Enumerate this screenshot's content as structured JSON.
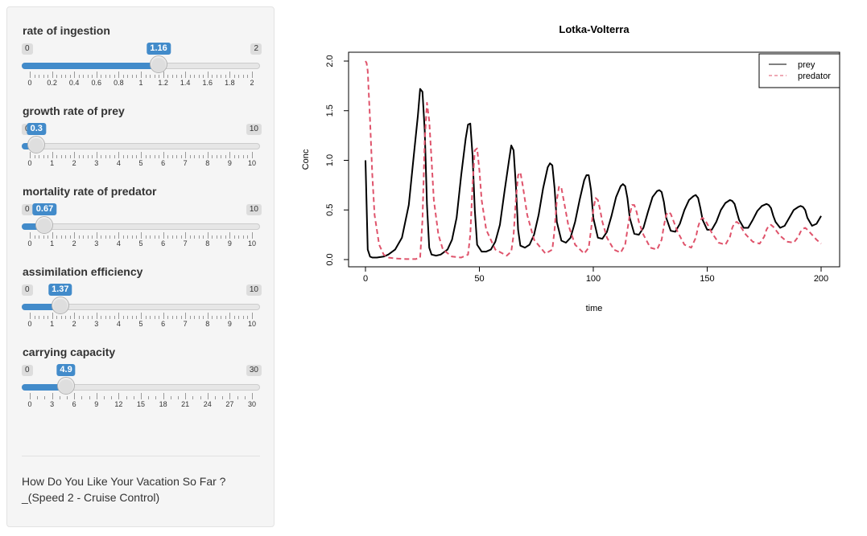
{
  "sliders": [
    {
      "id": "ingestion",
      "label": "rate of ingestion",
      "min": 0,
      "max": 2,
      "value": 1.16,
      "value_label": "1.16",
      "min_label": "0",
      "max_label": "2",
      "ticks": [
        "0",
        "0.2",
        "0.4",
        "0.6",
        "0.8",
        "1",
        "1.2",
        "1.4",
        "1.6",
        "1.8",
        "2"
      ],
      "minor_per_major": 4
    },
    {
      "id": "growth",
      "label": "growth rate of prey",
      "min": 0,
      "max": 10,
      "value": 0.3,
      "value_label": "0.3",
      "min_label": "0",
      "max_label": "10",
      "ticks": [
        "0",
        "1",
        "2",
        "3",
        "4",
        "5",
        "6",
        "7",
        "8",
        "9",
        "10"
      ],
      "minor_per_major": 4
    },
    {
      "id": "mortality",
      "label": "mortality rate of predator",
      "min": 0,
      "max": 10,
      "value": 0.67,
      "value_label": "0.67",
      "min_label": "0",
      "max_label": "10",
      "ticks": [
        "0",
        "1",
        "2",
        "3",
        "4",
        "5",
        "6",
        "7",
        "8",
        "9",
        "10"
      ],
      "minor_per_major": 4
    },
    {
      "id": "assimilation",
      "label": "assimilation efficiency",
      "min": 0,
      "max": 10,
      "value": 1.37,
      "value_label": "1.37",
      "min_label": "0",
      "max_label": "10",
      "ticks": [
        "0",
        "1",
        "2",
        "3",
        "4",
        "5",
        "6",
        "7",
        "8",
        "9",
        "10"
      ],
      "minor_per_major": 4
    },
    {
      "id": "capacity",
      "label": "carrying capacity",
      "min": 0,
      "max": 30,
      "value": 4.9,
      "value_label": "4.9",
      "min_label": "0",
      "max_label": "30",
      "ticks": [
        "0",
        "3",
        "6",
        "9",
        "12",
        "15",
        "18",
        "21",
        "24",
        "27",
        "30"
      ],
      "minor_per_major": 2
    }
  ],
  "footer": {
    "line1": "How Do You Like Your Vacation So Far ?",
    "line2": "_(Speed 2 - Cruise Control)"
  },
  "colors": {
    "accent": "#428bca",
    "prey": "#000000",
    "predator": "#DF536B"
  },
  "chart_data": {
    "type": "line",
    "title": "Lotka-Volterra",
    "xlabel": "time",
    "ylabel": "Conc",
    "xlim": [
      0,
      200
    ],
    "ylim": [
      0,
      2.0
    ],
    "xticks": [
      0,
      50,
      100,
      150,
      200
    ],
    "yticks": [
      0.0,
      0.5,
      1.0,
      1.5,
      2.0
    ],
    "ytick_labels": [
      "0.0",
      "0.5",
      "1.0",
      "1.5",
      "2.0"
    ],
    "legend_position": "top-right",
    "series": [
      {
        "name": "prey",
        "style": "solid",
        "color": "#000000",
        "x": [
          0,
          1,
          2,
          3,
          5,
          8,
          10,
          13,
          16,
          19,
          21,
          23,
          24,
          25,
          26,
          27,
          28,
          29,
          31,
          33,
          36,
          38,
          40,
          42,
          44,
          45,
          46,
          47,
          48,
          49,
          51,
          53,
          55,
          57,
          59,
          61,
          63,
          64,
          65,
          66,
          67,
          68,
          70,
          72,
          74,
          76,
          78,
          80,
          81,
          82,
          83,
          84,
          86,
          88,
          90,
          92,
          94,
          96,
          97,
          98,
          99,
          100,
          102,
          104,
          106,
          108,
          110,
          112,
          113,
          114,
          115,
          116,
          118,
          120,
          122,
          124,
          126,
          128,
          129,
          130,
          131,
          132,
          134,
          136,
          138,
          140,
          142,
          144,
          145,
          146,
          147,
          148,
          150,
          152,
          154,
          156,
          158,
          160,
          161,
          162,
          163,
          164,
          166,
          168,
          170,
          172,
          174,
          176,
          177,
          178,
          179,
          180,
          182,
          184,
          186,
          188,
          190,
          191,
          192,
          193,
          194,
          196,
          198,
          200
        ],
        "y": [
          1.0,
          0.1,
          0.03,
          0.02,
          0.02,
          0.03,
          0.05,
          0.1,
          0.22,
          0.55,
          1.0,
          1.45,
          1.72,
          1.69,
          1.3,
          0.55,
          0.12,
          0.05,
          0.04,
          0.05,
          0.1,
          0.2,
          0.42,
          0.85,
          1.22,
          1.36,
          1.37,
          1.05,
          0.5,
          0.15,
          0.08,
          0.08,
          0.1,
          0.18,
          0.35,
          0.68,
          1.0,
          1.15,
          1.1,
          0.75,
          0.3,
          0.14,
          0.12,
          0.15,
          0.25,
          0.45,
          0.72,
          0.93,
          0.97,
          0.95,
          0.72,
          0.38,
          0.19,
          0.17,
          0.22,
          0.38,
          0.6,
          0.8,
          0.85,
          0.85,
          0.7,
          0.42,
          0.22,
          0.21,
          0.28,
          0.44,
          0.63,
          0.74,
          0.76,
          0.74,
          0.62,
          0.42,
          0.26,
          0.25,
          0.32,
          0.48,
          0.63,
          0.69,
          0.7,
          0.68,
          0.58,
          0.42,
          0.29,
          0.28,
          0.36,
          0.5,
          0.6,
          0.64,
          0.65,
          0.62,
          0.52,
          0.4,
          0.3,
          0.3,
          0.38,
          0.5,
          0.57,
          0.6,
          0.59,
          0.56,
          0.48,
          0.4,
          0.32,
          0.32,
          0.4,
          0.49,
          0.54,
          0.56,
          0.55,
          0.52,
          0.44,
          0.38,
          0.32,
          0.34,
          0.42,
          0.5,
          0.53,
          0.54,
          0.53,
          0.5,
          0.42,
          0.34,
          0.36,
          0.44
        ]
      },
      {
        "name": "predator",
        "style": "dashed",
        "color": "#DF536B",
        "x": [
          0,
          0.5,
          1,
          2,
          3,
          4,
          6,
          8,
          10,
          14,
          18,
          22,
          24,
          25,
          26,
          27,
          28,
          29,
          30,
          32,
          34,
          38,
          42,
          45,
          46,
          47,
          48,
          49,
          50,
          51,
          53,
          57,
          62,
          64,
          65,
          66,
          67,
          68,
          69,
          71,
          74,
          79,
          82,
          83,
          84,
          85,
          86,
          87,
          89,
          92,
          96,
          98,
          99,
          100,
          101,
          102,
          103,
          104,
          106,
          109,
          112,
          114,
          115,
          116,
          117,
          118,
          119,
          120,
          122,
          125,
          128,
          130,
          131,
          132,
          133,
          134,
          135,
          137,
          140,
          143,
          145,
          146,
          147,
          148,
          149,
          150,
          152,
          155,
          158,
          160,
          161,
          162,
          163,
          164,
          165,
          167,
          170,
          173,
          175,
          176,
          177,
          178,
          179,
          180,
          182,
          185,
          188,
          190,
          191,
          192,
          193,
          194,
          196,
          198,
          200
        ],
        "y": [
          2.0,
          1.98,
          1.9,
          1.4,
          0.85,
          0.45,
          0.15,
          0.05,
          0.02,
          0.01,
          0.005,
          0.005,
          0.02,
          0.4,
          1.2,
          1.58,
          1.4,
          1.0,
          0.6,
          0.25,
          0.1,
          0.03,
          0.02,
          0.05,
          0.25,
          0.75,
          1.1,
          1.12,
          0.9,
          0.6,
          0.3,
          0.1,
          0.04,
          0.08,
          0.25,
          0.6,
          0.85,
          0.88,
          0.75,
          0.45,
          0.2,
          0.06,
          0.1,
          0.3,
          0.6,
          0.74,
          0.72,
          0.6,
          0.35,
          0.15,
          0.06,
          0.12,
          0.3,
          0.5,
          0.62,
          0.6,
          0.5,
          0.38,
          0.22,
          0.1,
          0.07,
          0.15,
          0.3,
          0.45,
          0.55,
          0.55,
          0.48,
          0.38,
          0.25,
          0.12,
          0.1,
          0.2,
          0.34,
          0.45,
          0.48,
          0.46,
          0.4,
          0.28,
          0.15,
          0.12,
          0.22,
          0.33,
          0.4,
          0.42,
          0.4,
          0.36,
          0.27,
          0.17,
          0.15,
          0.23,
          0.32,
          0.37,
          0.38,
          0.36,
          0.32,
          0.25,
          0.18,
          0.16,
          0.23,
          0.3,
          0.34,
          0.35,
          0.33,
          0.3,
          0.24,
          0.18,
          0.17,
          0.23,
          0.28,
          0.31,
          0.32,
          0.3,
          0.25,
          0.2,
          0.16
        ]
      }
    ]
  }
}
